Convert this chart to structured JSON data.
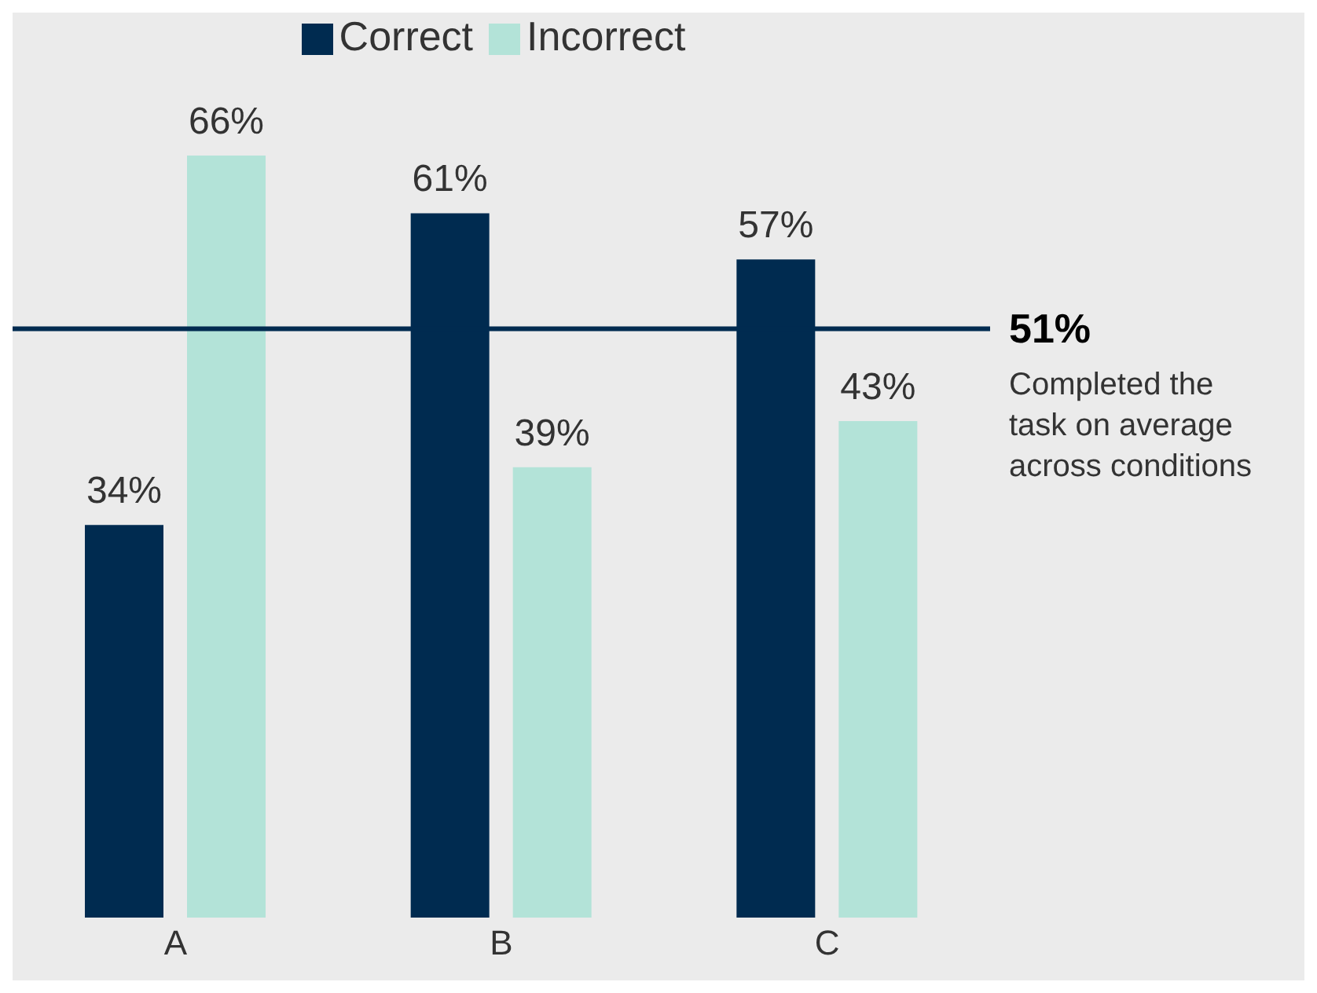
{
  "chart_data": {
    "type": "bar",
    "categories": [
      "A",
      "B",
      "C"
    ],
    "series": [
      {
        "name": "Correct",
        "color": "#002b50",
        "values": [
          34,
          61,
          57
        ],
        "value_labels": [
          "34%",
          "61%",
          "57%"
        ]
      },
      {
        "name": "Incorrect",
        "color": "#b3e3d8",
        "values": [
          66,
          39,
          43
        ],
        "value_labels": [
          "66%",
          "39%",
          "43%"
        ]
      }
    ],
    "ref_lines": [
      {
        "axis": "y",
        "value": 51,
        "label": "51%",
        "color": "#002b50"
      }
    ],
    "annotations": [
      "Completed the task on average across conditions"
    ],
    "legend": "top",
    "grid": false
  }
}
